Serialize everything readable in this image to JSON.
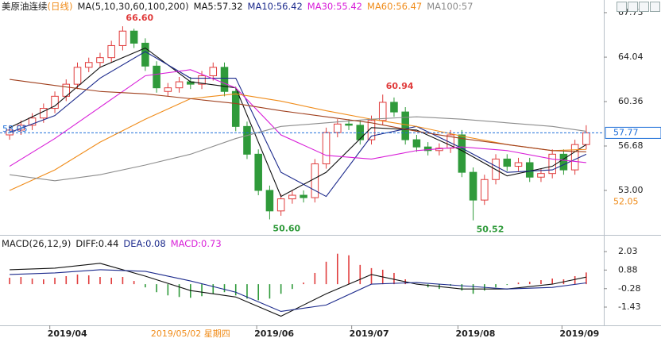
{
  "chart_data": [
    {
      "type": "candlestick",
      "title": "美原油连续",
      "subtitle": "(日线)",
      "legend_title": "MA(5,10,30,60,100,200)",
      "up_color": "#e03c3c",
      "down_color": "#2f9a3a",
      "open": [
        57.6,
        58.0,
        58.4,
        59.0,
        59.8,
        60.8,
        61.8,
        63.2,
        63.6,
        64.0,
        65.0,
        66.2,
        65.2,
        63.3,
        61.2,
        61.5,
        62.0,
        61.8,
        62.5,
        63.2,
        61.2,
        58.3,
        56.0,
        53.0,
        51.3,
        52.3,
        52.6,
        52.4,
        55.2,
        57.8,
        58.5,
        58.4,
        57.2,
        58.8,
        60.3,
        59.5,
        57.2,
        56.6,
        56.3,
        56.5,
        57.6,
        54.5,
        52.2,
        53.9,
        55.6,
        55.0,
        55.3,
        54.1,
        54.4,
        56.0,
        54.7,
        56.8
      ],
      "high": [
        58.4,
        58.8,
        59.4,
        60.2,
        61.2,
        62.2,
        63.6,
        64.0,
        64.4,
        65.4,
        66.6,
        66.4,
        65.6,
        63.7,
        61.9,
        62.4,
        62.4,
        62.9,
        63.6,
        63.6,
        61.6,
        58.7,
        56.4,
        53.4,
        52.7,
        53.0,
        53.0,
        55.6,
        58.2,
        58.9,
        58.9,
        58.8,
        59.2,
        60.94,
        60.7,
        59.9,
        57.6,
        57.0,
        56.9,
        58.0,
        58.0,
        54.9,
        54.3,
        56.0,
        56.0,
        55.7,
        55.7,
        54.8,
        56.4,
        56.4,
        57.2,
        58.4
      ],
      "low": [
        57.2,
        57.6,
        58.0,
        58.6,
        59.4,
        60.4,
        61.4,
        62.8,
        63.2,
        63.6,
        64.6,
        64.8,
        62.9,
        61.1,
        60.8,
        61.1,
        61.4,
        61.4,
        62.1,
        60.8,
        57.9,
        55.6,
        52.6,
        50.6,
        50.9,
        51.9,
        52.0,
        52.0,
        54.8,
        57.4,
        58.0,
        56.8,
        56.8,
        58.4,
        59.1,
        56.8,
        56.2,
        55.9,
        55.9,
        56.1,
        54.1,
        50.52,
        51.8,
        53.5,
        54.6,
        54.6,
        53.7,
        53.7,
        54.0,
        54.3,
        54.3,
        56.4
      ],
      "close": [
        58.0,
        58.4,
        59.0,
        59.8,
        60.8,
        61.8,
        63.2,
        63.6,
        64.0,
        65.0,
        66.2,
        65.2,
        63.3,
        61.5,
        61.5,
        62.0,
        61.8,
        62.5,
        63.2,
        61.2,
        58.3,
        56.0,
        53.0,
        51.3,
        52.3,
        52.6,
        52.4,
        55.2,
        57.8,
        58.5,
        58.4,
        57.2,
        58.8,
        60.3,
        59.5,
        57.2,
        56.6,
        56.3,
        56.5,
        57.6,
        54.5,
        52.2,
        53.9,
        55.6,
        55.0,
        55.3,
        54.1,
        54.4,
        56.0,
        54.7,
        56.8,
        57.77
      ],
      "series": [
        {
          "name": "MA5:57.32",
          "color": "#111111",
          "x": [
            0,
            4,
            8,
            12,
            16,
            20,
            24,
            28,
            32,
            36,
            40,
            44,
            48,
            51
          ],
          "values": [
            58.2,
            60.0,
            63.2,
            64.8,
            62.0,
            61.5,
            52.5,
            54.5,
            58.2,
            58.0,
            56.3,
            54.2,
            55.0,
            56.8
          ]
        },
        {
          "name": "MA10:56.42",
          "color": "#1c2a8c",
          "x": [
            0,
            4,
            8,
            12,
            16,
            20,
            24,
            28,
            32,
            36,
            40,
            44,
            48,
            51
          ],
          "values": [
            57.8,
            59.2,
            62.3,
            64.5,
            62.3,
            62.3,
            54.5,
            52.5,
            57.5,
            58.3,
            56.5,
            54.5,
            54.7,
            56.0
          ]
        },
        {
          "name": "MA30:55.42",
          "color": "#d81ed8",
          "x": [
            0,
            4,
            8,
            12,
            16,
            20,
            24,
            28,
            32,
            36,
            40,
            44,
            48,
            51
          ],
          "values": [
            55.0,
            57.3,
            59.9,
            62.5,
            63.0,
            61.5,
            57.6,
            55.9,
            55.6,
            56.3,
            56.6,
            56.3,
            55.6,
            55.3
          ]
        },
        {
          "name": "MA60:56.47",
          "color": "#f08c1a",
          "x": [
            0,
            4,
            8,
            12,
            16,
            20,
            24,
            28,
            32,
            36,
            40,
            44,
            48,
            51
          ],
          "values": [
            53.0,
            54.7,
            57.0,
            58.9,
            60.6,
            61.0,
            60.4,
            59.6,
            58.9,
            58.3,
            57.5,
            56.8,
            56.3,
            56.4
          ]
        },
        {
          "name": "MA100:57",
          "color": "#8c8c8c",
          "x": [
            0,
            4,
            8,
            12,
            16,
            20,
            24,
            28,
            32,
            36,
            40,
            44,
            48,
            51
          ],
          "values": [
            54.3,
            53.8,
            54.3,
            55.1,
            56.0,
            57.3,
            58.3,
            58.6,
            58.9,
            59.1,
            58.9,
            58.6,
            58.3,
            57.9
          ]
        },
        {
          "color": "#a0401e",
          "x": [
            0,
            4,
            8,
            12,
            16,
            20,
            24,
            28,
            32,
            36,
            40,
            44,
            48,
            51
          ],
          "values": [
            62.2,
            61.7,
            61.2,
            61.0,
            60.6,
            60.2,
            59.6,
            59.1,
            58.6,
            57.9,
            57.3,
            56.8,
            56.3,
            56.2
          ]
        }
      ],
      "annotations": [
        {
          "label": "66.60",
          "value": 66.6
        },
        {
          "label": "50.60",
          "value": 50.6
        },
        {
          "label": "60.94",
          "value": 60.94
        },
        {
          "label": "50.52",
          "value": 50.52
        }
      ],
      "price_lines": [
        {
          "label": "57.77",
          "value": 57.77,
          "color": "#1e6fd9",
          "side": "right",
          "style": "dashed"
        },
        {
          "label": "58.05",
          "value": 58.05,
          "color": "#1e6fd9",
          "side": "left"
        },
        {
          "label": "52.05",
          "value": 52.05,
          "color": "#f08c1a",
          "side": "right"
        }
      ],
      "ylim": [
        49.71,
        68.12
      ],
      "yticks": [
        67.73,
        64.04,
        60.36,
        56.68,
        {
          "value": 53,
          "label": "53.00"
        }
      ]
    },
    {
      "type": "macd",
      "title": "MACD(26,12,9)",
      "histogram_name": "MACD:0.73",
      "histogram_color": "#d81ed8",
      "up_color": "#e03c3c",
      "down_color": "#2f9a3a",
      "values": [
        0.4,
        0.45,
        0.35,
        0.3,
        0.4,
        0.5,
        0.6,
        0.55,
        0.45,
        0.4,
        0.45,
        0.2,
        -0.2,
        -0.5,
        -0.7,
        -0.8,
        -0.85,
        -0.75,
        -0.6,
        -0.5,
        -0.7,
        -0.9,
        -1.0,
        -0.9,
        -0.6,
        -0.3,
        0.1,
        0.7,
        1.4,
        1.9,
        1.8,
        1.2,
        1.0,
        0.9,
        0.7,
        0.3,
        0.0,
        -0.2,
        -0.3,
        -0.1,
        -0.4,
        -0.6,
        -0.4,
        -0.2,
        -0.05,
        0.1,
        0.15,
        0.25,
        0.35,
        0.3,
        0.5,
        0.73
      ],
      "series": [
        {
          "name": "DIFF:0.44",
          "color": "#111111",
          "x": [
            0,
            4,
            8,
            12,
            16,
            20,
            24,
            28,
            32,
            36,
            40,
            44,
            48,
            51
          ],
          "values": [
            0.9,
            1.0,
            1.3,
            0.5,
            -0.4,
            -0.8,
            -2.0,
            -0.6,
            0.6,
            0.0,
            -0.3,
            -0.3,
            0.0,
            0.44
          ]
        },
        {
          "name": "DEA:0.08",
          "color": "#1c2a8c",
          "x": [
            0,
            4,
            8,
            12,
            16,
            20,
            24,
            28,
            32,
            36,
            40,
            44,
            48,
            51
          ],
          "values": [
            0.6,
            0.7,
            0.9,
            0.8,
            0.2,
            -0.5,
            -1.7,
            -1.3,
            0.0,
            0.1,
            -0.1,
            -0.3,
            -0.2,
            0.08
          ]
        }
      ],
      "ylim": [
        -2.32,
        2.38
      ],
      "yticks": [
        2.03,
        0.88,
        -0.28,
        -1.43
      ],
      "xticks": [
        {
          "value": 5.1,
          "label": "2019/04"
        },
        {
          "value": 23.4,
          "label": "2019/06"
        },
        {
          "value": 31.8,
          "label": "2019/07"
        },
        {
          "value": 41.2,
          "label": "2019/08"
        },
        {
          "value": 50.4,
          "label": "2019/09"
        }
      ],
      "cursor": {
        "value": 16.0,
        "label": "2019/05/02 星期四"
      }
    }
  ]
}
